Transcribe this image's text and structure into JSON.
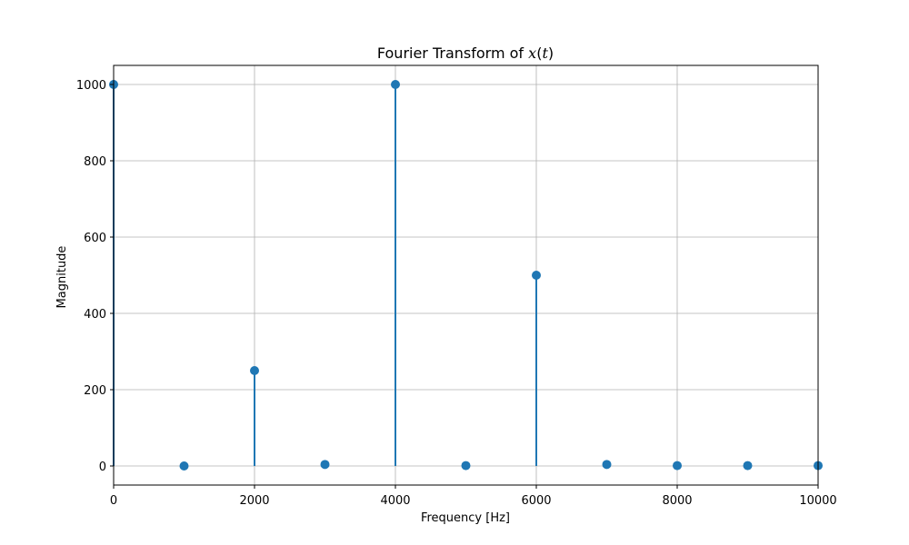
{
  "chart_data": {
    "type": "stem",
    "title": {
      "prefix": "Fourier Transform of ",
      "var": "x",
      "open_paren": "(",
      "arg": "t",
      "close_paren": ")"
    },
    "xlabel": "Frequency [Hz]",
    "ylabel": "Magnitude",
    "xlim": [
      0,
      10000
    ],
    "ylim": [
      -50,
      1050
    ],
    "x_ticks": [
      0,
      2000,
      4000,
      6000,
      8000,
      10000
    ],
    "y_ticks": [
      0,
      200,
      400,
      600,
      800,
      1000
    ],
    "grid": true,
    "color": "#1f77b4",
    "points": [
      {
        "x": 0,
        "y": 1000
      },
      {
        "x": 1000,
        "y": 0
      },
      {
        "x": 2000,
        "y": 250
      },
      {
        "x": 3000,
        "y": 4
      },
      {
        "x": 4000,
        "y": 1000
      },
      {
        "x": 5000,
        "y": 1
      },
      {
        "x": 6000,
        "y": 500
      },
      {
        "x": 7000,
        "y": 4
      },
      {
        "x": 8000,
        "y": 1
      },
      {
        "x": 9000,
        "y": 1
      },
      {
        "x": 10000,
        "y": 1
      }
    ]
  }
}
